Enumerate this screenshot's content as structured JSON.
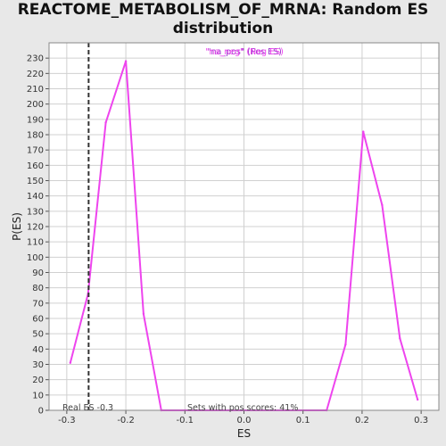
{
  "chart_data": {
    "type": "line",
    "title_line1": "REACTOME_METABOLISM_OF_MRNA: Random ES",
    "title_line2": "distribution",
    "xlabel": "ES",
    "ylabel": "P(ES)",
    "xlim": [
      -0.33,
      0.33
    ],
    "ylim": [
      0,
      240
    ],
    "x_ticks": [
      -0.3,
      -0.2,
      -0.1,
      0.0,
      0.1,
      0.2,
      0.3
    ],
    "x_tick_labels": [
      "-0.3",
      "-0.2",
      "-0.1",
      "0.0",
      "0.1",
      "0.2",
      "0.3"
    ],
    "y_ticks": [
      0,
      10,
      20,
      30,
      40,
      50,
      60,
      70,
      80,
      90,
      100,
      110,
      120,
      130,
      140,
      150,
      160,
      170,
      180,
      190,
      200,
      210,
      220,
      230
    ],
    "grid": true,
    "legend_placement": "top",
    "series": [
      {
        "name": "\"na_neg\" (Neg ES)",
        "color": "#ee44ee",
        "x": [
          -0.294,
          -0.264,
          -0.234,
          -0.2,
          -0.17,
          -0.14,
          -0.1,
          0.0,
          0.14,
          0.172,
          0.202,
          0.234,
          0.264,
          0.294
        ],
        "y": [
          31,
          76,
          188,
          228,
          63,
          0,
          0,
          0,
          0,
          43,
          182,
          134,
          47,
          7
        ]
      }
    ],
    "legend_overlay": {
      "text": "\"na_pos\" (Pos ES)",
      "color": "#9933cc"
    },
    "real_es": {
      "value": -0.263,
      "label": "Real ES -0.3"
    },
    "annotation": "Sets with pos scores: 41%",
    "colors": {
      "background": "#e8e8e8",
      "plot_bg": "#ffffff",
      "grid": "#d0d0d0"
    }
  }
}
